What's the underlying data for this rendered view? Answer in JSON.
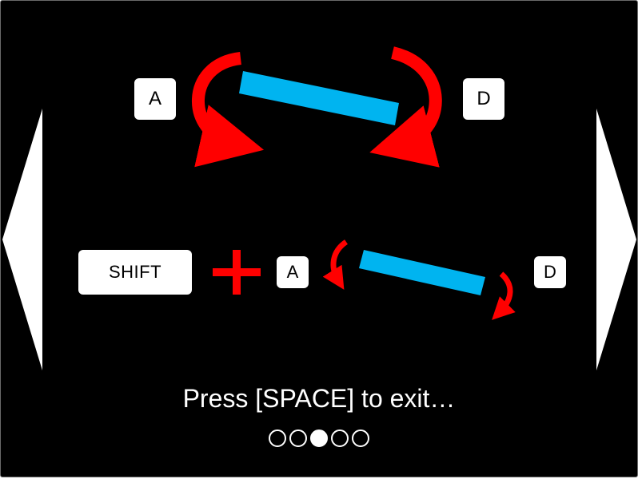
{
  "tutorial": {
    "row_normal": {
      "left_key": "A",
      "right_key": "D"
    },
    "row_slow": {
      "modifier_key": "SHIFT",
      "plus_symbol": "+",
      "left_key": "A",
      "right_key": "D"
    },
    "exit_message": "Press [SPACE] to exit…"
  },
  "pagination": {
    "total": 5,
    "current": 3
  },
  "colors": {
    "background": "#000000",
    "paddle": "#00b4f0",
    "arrow": "#ff0000",
    "key": "#ffffff",
    "text": "#ffffff"
  },
  "icons": {
    "prev": "triangle-left",
    "next": "triangle-right"
  }
}
